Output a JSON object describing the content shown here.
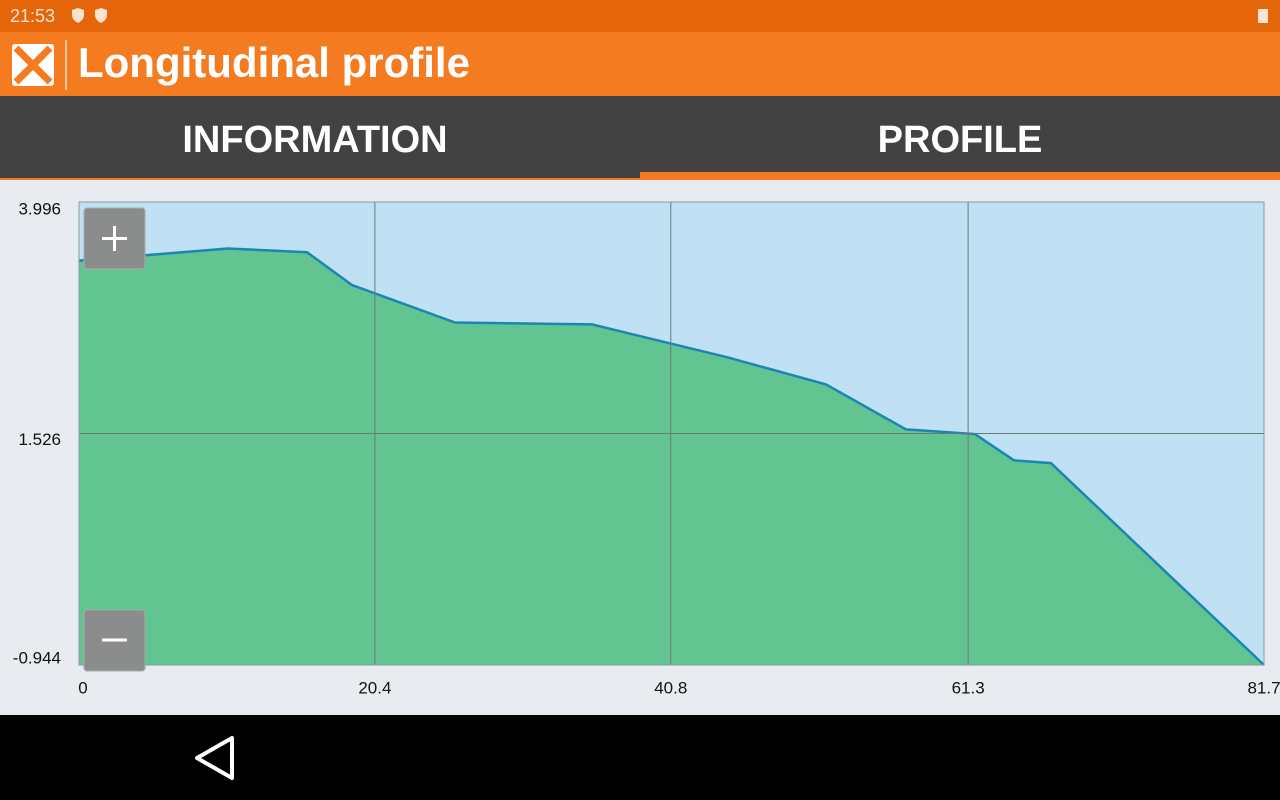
{
  "status_bar": {
    "time": "21:53"
  },
  "app_bar": {
    "title": "Longitudinal profile"
  },
  "tabs": [
    "INFORMATION",
    "PROFILE"
  ],
  "chart_data": {
    "type": "area",
    "x": [
      0,
      10.27,
      15.72,
      18.82,
      25.92,
      35.37,
      44.67,
      51.5,
      57.01,
      61.77,
      64.46,
      67.01,
      81.7
    ],
    "values": [
      3.37,
      3.5,
      3.46,
      3.11,
      2.71,
      2.69,
      2.34,
      2.05,
      1.57,
      1.52,
      1.24,
      1.21,
      -0.944
    ],
    "color": "#1b86b5",
    "fill": "#62c491",
    "background": "#bfe1f3",
    "xlim": [
      0,
      81.7
    ],
    "ylim": [
      -0.944,
      3.996
    ],
    "xticks": [
      0,
      20.4,
      40.8,
      61.3,
      81.7
    ],
    "yticks": [
      -0.944,
      1.526,
      3.996
    ],
    "grid": true
  }
}
